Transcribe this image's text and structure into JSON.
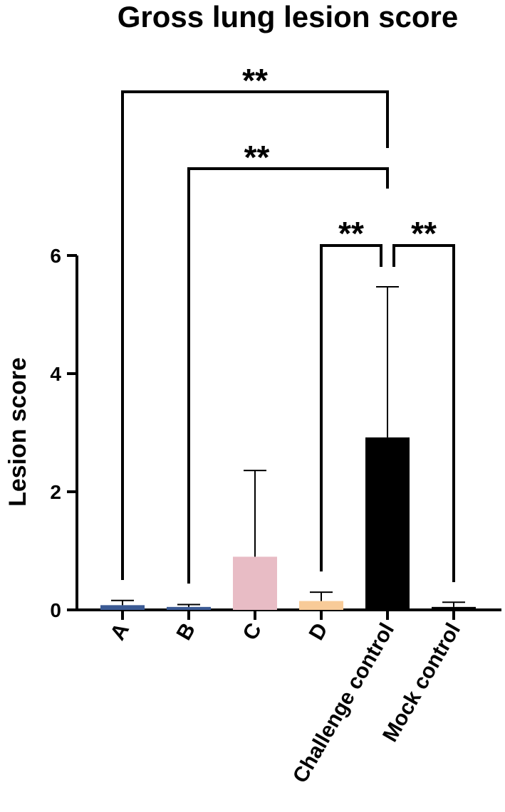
{
  "chart_data": {
    "type": "bar",
    "title": "Gross lung lesion score",
    "xlabel": "",
    "ylabel": "Lesion score",
    "categories": [
      "A",
      "B",
      "C",
      "D",
      "Challenge control",
      "Mock control"
    ],
    "values": [
      0.08,
      0.05,
      0.9,
      0.15,
      2.92,
      0.05
    ],
    "error_upper": [
      0.16,
      0.09,
      2.36,
      0.3,
      5.47,
      0.13
    ],
    "colors": [
      "#3b5a94",
      "#3b5a94",
      "#e8bcc5",
      "#f8cb98",
      "#000000",
      "#000000"
    ],
    "ylim": [
      0,
      6
    ],
    "yticks": [
      0,
      2,
      4,
      6
    ],
    "ytick_labels": [
      "0",
      "2",
      "4",
      "6"
    ],
    "grid": false,
    "legend": "none",
    "significance": [
      {
        "from": "A",
        "to": "Challenge control",
        "label": "**"
      },
      {
        "from": "B",
        "to": "Challenge control",
        "label": "**"
      },
      {
        "from": "D",
        "to": "Challenge control",
        "label": "**"
      },
      {
        "from": "Challenge control",
        "to": "Mock control",
        "label": "**"
      }
    ]
  }
}
